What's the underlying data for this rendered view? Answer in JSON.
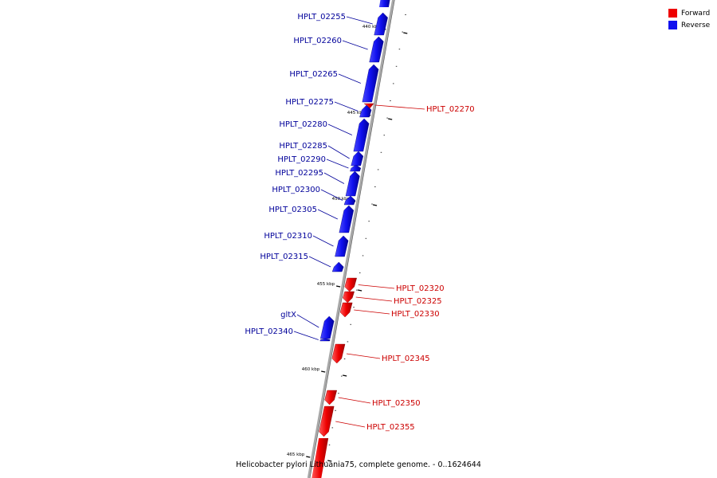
{
  "colors": {
    "forward": "#ee0000",
    "reverse": "#1010ee",
    "backbone": "#9a9a9a",
    "forward_label": "#cc0000",
    "reverse_label": "#00009a"
  },
  "legend": [
    {
      "label": "Forward",
      "color": "#ee0000"
    },
    {
      "label": "Reverse",
      "color": "#1010ee"
    }
  ],
  "caption": "Helicobacter pylori Lithuania75, complete genome. - 0..1624644",
  "ticks": [
    "440 kbp",
    "445 kbp",
    "450 kbp",
    "455 kbp",
    "460 kbp",
    "465 kbp"
  ],
  "genes": [
    {
      "name": "HPLT_02255",
      "strand": "reverse"
    },
    {
      "name": "HPLT_02260",
      "strand": "reverse"
    },
    {
      "name": "HPLT_02265",
      "strand": "reverse"
    },
    {
      "name": "HPLT_02270",
      "strand": "forward"
    },
    {
      "name": "HPLT_02275",
      "strand": "reverse"
    },
    {
      "name": "HPLT_02280",
      "strand": "reverse"
    },
    {
      "name": "HPLT_02285",
      "strand": "reverse"
    },
    {
      "name": "HPLT_02290",
      "strand": "reverse"
    },
    {
      "name": "HPLT_02295",
      "strand": "reverse"
    },
    {
      "name": "HPLT_02300",
      "strand": "reverse"
    },
    {
      "name": "HPLT_02305",
      "strand": "reverse"
    },
    {
      "name": "HPLT_02310",
      "strand": "reverse"
    },
    {
      "name": "HPLT_02315",
      "strand": "reverse"
    },
    {
      "name": "HPLT_02320",
      "strand": "forward"
    },
    {
      "name": "HPLT_02325",
      "strand": "forward"
    },
    {
      "name": "HPLT_02330",
      "strand": "forward"
    },
    {
      "name": "gltX",
      "strand": "reverse"
    },
    {
      "name": "HPLT_02340",
      "strand": "reverse"
    },
    {
      "name": "HPLT_02345",
      "strand": "forward"
    },
    {
      "name": "HPLT_02350",
      "strand": "forward"
    },
    {
      "name": "HPLT_02355",
      "strand": "forward"
    }
  ]
}
